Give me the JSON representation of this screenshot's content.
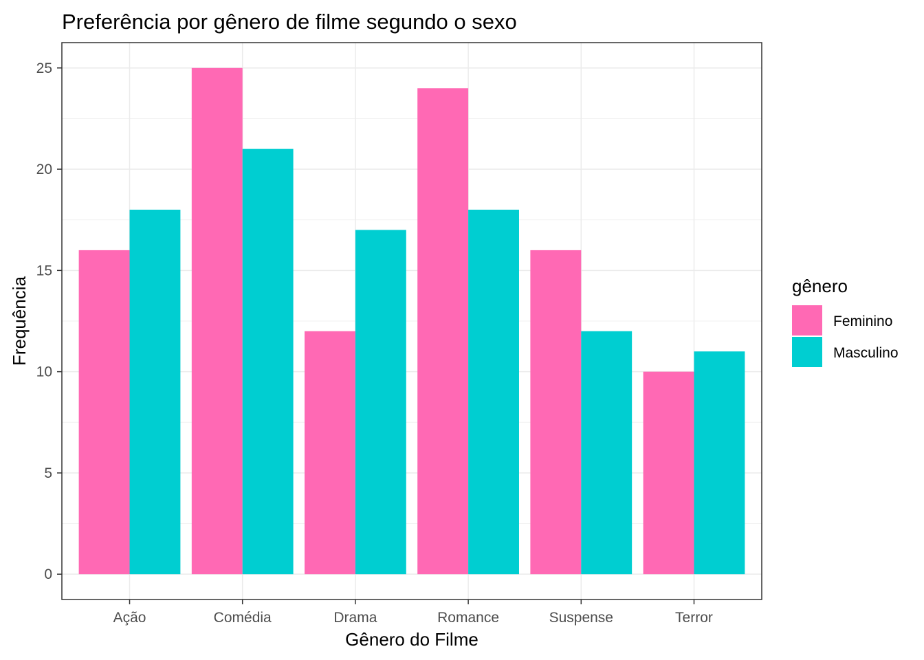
{
  "chart_data": {
    "type": "bar",
    "title": "Preferência por gênero de filme segundo o sexo",
    "xlabel": "Gênero do Filme",
    "ylabel": "Frequência",
    "categories": [
      "Ação",
      "Comédia",
      "Drama",
      "Romance",
      "Suspense",
      "Terror"
    ],
    "series": [
      {
        "name": "Feminino",
        "color": "#FF69B4",
        "values": [
          16,
          25,
          12,
          24,
          16,
          10
        ]
      },
      {
        "name": "Masculino",
        "color": "#00CED1",
        "values": [
          18,
          21,
          17,
          18,
          12,
          11
        ]
      }
    ],
    "ylim": [
      -1.25,
      26.25
    ],
    "yticks": [
      0,
      5,
      10,
      15,
      20,
      25
    ],
    "ytick_labels": [
      "0",
      "5",
      "10",
      "15",
      "20",
      "25"
    ],
    "grid": true,
    "legend": {
      "title": "gênero",
      "position": "right"
    }
  }
}
